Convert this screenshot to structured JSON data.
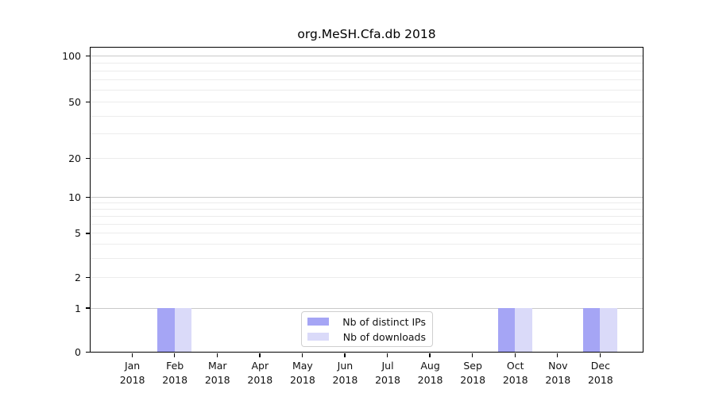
{
  "chart_data": {
    "type": "bar",
    "title": "org.MeSH.Cfa.db 2018",
    "categories": [
      "Jan 2018",
      "Feb 2018",
      "Mar 2018",
      "Apr 2018",
      "May 2018",
      "Jun 2018",
      "Jul 2018",
      "Aug 2018",
      "Sep 2018",
      "Oct 2018",
      "Nov 2018",
      "Dec 2018"
    ],
    "series": [
      {
        "name": "Nb of distinct IPs",
        "color": "#a5a5f5",
        "values": [
          0,
          1,
          0,
          0,
          0,
          0,
          0,
          0,
          0,
          1,
          0,
          1
        ]
      },
      {
        "name": "Nb of downloads",
        "color": "#dadaf9",
        "values": [
          0,
          1,
          0,
          0,
          0,
          0,
          0,
          0,
          0,
          1,
          0,
          1
        ]
      }
    ],
    "xlabel": "",
    "ylabel": "",
    "y_axis": {
      "scale": "compressed-log",
      "tick_values": [
        0,
        1,
        2,
        5,
        10,
        20,
        50,
        100
      ],
      "minor_tick_values": [
        3,
        4,
        6,
        7,
        8,
        9,
        30,
        40,
        60,
        70,
        80,
        90
      ],
      "ylim": [
        0,
        113
      ]
    },
    "grid": true,
    "legend_position": "bottom-center"
  },
  "legend": {
    "items": [
      {
        "label": "Nb of distinct IPs",
        "color": "#a5a5f5"
      },
      {
        "label": "Nb of downloads",
        "color": "#dadaf9"
      }
    ]
  },
  "colors": {
    "background": "#ffffff",
    "spine": "#000000",
    "grid_major": "#c9c9c9",
    "grid_minor": "#ececec",
    "text": "#111111",
    "legend_border": "#cfcfcf"
  }
}
